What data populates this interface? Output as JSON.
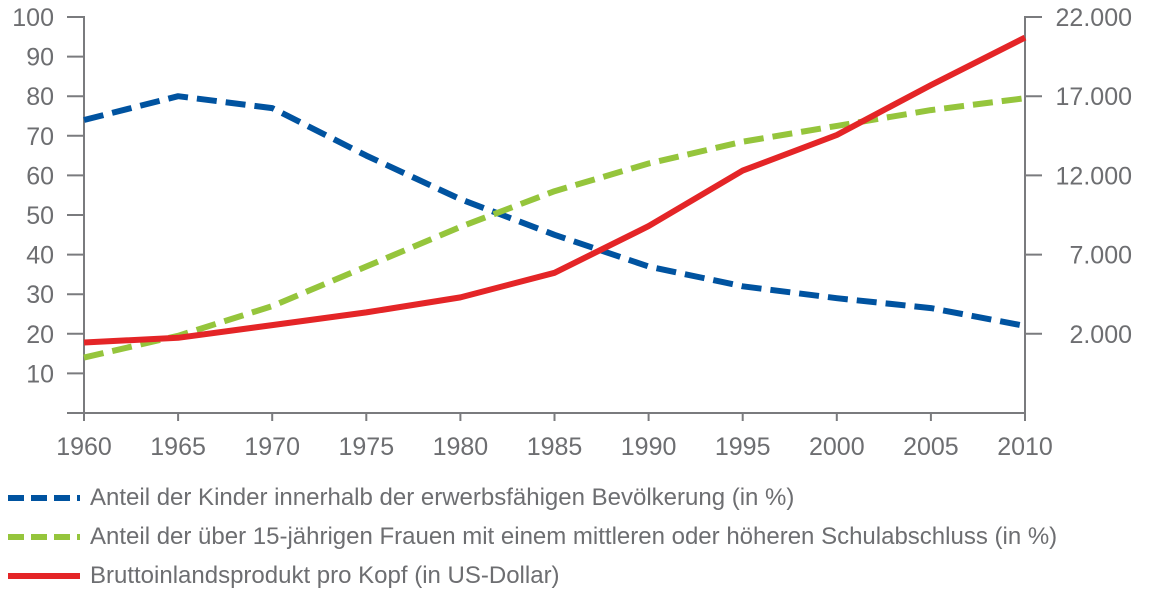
{
  "chart_data": {
    "type": "line",
    "x": [
      1960,
      1965,
      1970,
      1975,
      1980,
      1985,
      1990,
      1995,
      2000,
      2005,
      2010
    ],
    "xlim": [
      1960,
      2010
    ],
    "x_ticks": [
      "1960",
      "1965",
      "1970",
      "1975",
      "1980",
      "1985",
      "1990",
      "1995",
      "2000",
      "2005",
      "2010"
    ],
    "ylim_left": [
      0,
      100
    ],
    "y_ticks_left": [
      "10",
      "20",
      "30",
      "40",
      "50",
      "60",
      "70",
      "80",
      "90",
      "100"
    ],
    "ylim_right": [
      -3000,
      22000
    ],
    "y_ticks_right": [
      "2.000",
      "7.000",
      "12.000",
      "17.000",
      "22.000"
    ],
    "grid": false,
    "legend_position": "bottom",
    "series": [
      {
        "name": "Anteil der Kinder innerhalb der erwerbsfähigen Bevölkerung (in %)",
        "axis": "left",
        "color": "#0053a0",
        "style": "dashed",
        "values": [
          74,
          80,
          77,
          65,
          54,
          45,
          37,
          32,
          29,
          26.5,
          22
        ]
      },
      {
        "name": "Anteil der über 15-jährigen Frauen mit einem mittleren oder höheren Schulabschluss (in %)",
        "axis": "left",
        "color": "#95c53c",
        "style": "dashed",
        "values": [
          14,
          19.5,
          27,
          37,
          47,
          56,
          63,
          68.5,
          72.5,
          76.5,
          79.5
        ]
      },
      {
        "name": "Bruttoinlandsprodukt pro Kopf (in US-Dollar)",
        "axis": "right",
        "color": "#e42527",
        "style": "solid",
        "values": [
          1450,
          1750,
          2550,
          3350,
          4300,
          5850,
          8800,
          12300,
          14550,
          17700,
          20700
        ]
      }
    ]
  }
}
